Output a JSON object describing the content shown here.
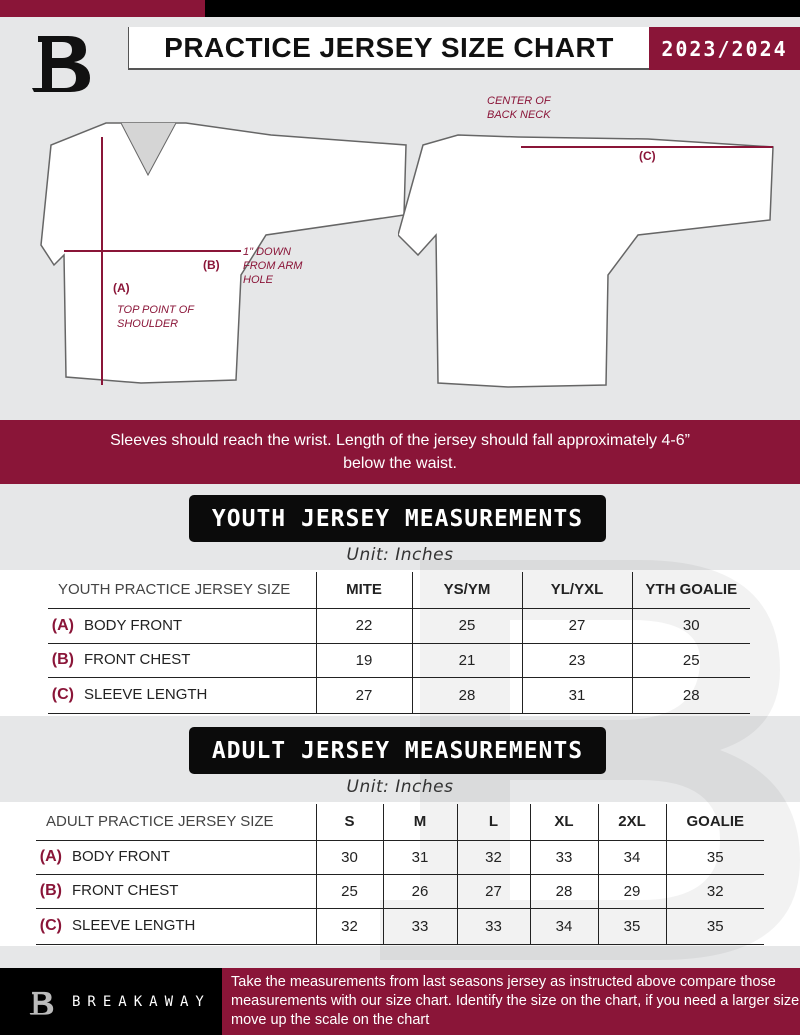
{
  "header": {
    "title": "PRACTICE JERSEY SIZE CHART",
    "season": "2023/2024"
  },
  "colors": {
    "accent": "#8a1538",
    "dark": "#0b0b0b",
    "background": "#e6e7e8"
  },
  "diagram": {
    "front": {
      "label_a": "(A)",
      "label_a_text": "TOP POINT OF SHOULDER",
      "label_b": "(B)",
      "label_b_text": "1\" DOWN FROM ARM HOLE"
    },
    "back": {
      "label_c": "(C)",
      "label_c_text": "CENTER OF BACK NECK"
    }
  },
  "note": "Sleeves should reach the wrist. Length of the jersey should fall approximately 4-6” below the waist.",
  "youth": {
    "title": "YOUTH JERSEY MEASUREMENTS",
    "unit": "Unit: Inches",
    "headers": [
      "YOUTH PRACTICE JERSEY SIZE",
      "MITE",
      "YS/YM",
      "YL/YXL",
      "YTH GOALIE"
    ],
    "rows": [
      {
        "letter": "(A)",
        "label": "BODY FRONT",
        "values": [
          "22",
          "25",
          "27",
          "30"
        ]
      },
      {
        "letter": "(B)",
        "label": "FRONT CHEST",
        "values": [
          "19",
          "21",
          "23",
          "25"
        ]
      },
      {
        "letter": "(C)",
        "label": "SLEEVE LENGTH",
        "values": [
          "27",
          "28",
          "31",
          "28"
        ]
      }
    ]
  },
  "adult": {
    "title": "ADULT JERSEY MEASUREMENTS",
    "unit": "Unit: Inches",
    "headers": [
      "ADULT PRACTICE JERSEY SIZE",
      "S",
      "M",
      "L",
      "XL",
      "2XL",
      "GOALIE"
    ],
    "rows": [
      {
        "letter": "(A)",
        "label": "BODY FRONT",
        "values": [
          "30",
          "31",
          "32",
          "33",
          "34",
          "35"
        ]
      },
      {
        "letter": "(B)",
        "label": "FRONT CHEST",
        "values": [
          "25",
          "26",
          "27",
          "28",
          "29",
          "32"
        ]
      },
      {
        "letter": "(C)",
        "label": "SLEEVE LENGTH",
        "values": [
          "32",
          "33",
          "33",
          "34",
          "35",
          "35"
        ]
      }
    ]
  },
  "footer": {
    "brand": "BREAKAWAY",
    "instructions": "Take the measurements from last seasons jersey as instructed above compare those measurements  with our size chart. Identify the size on the chart, if you need a larger size move up the scale on the chart"
  }
}
